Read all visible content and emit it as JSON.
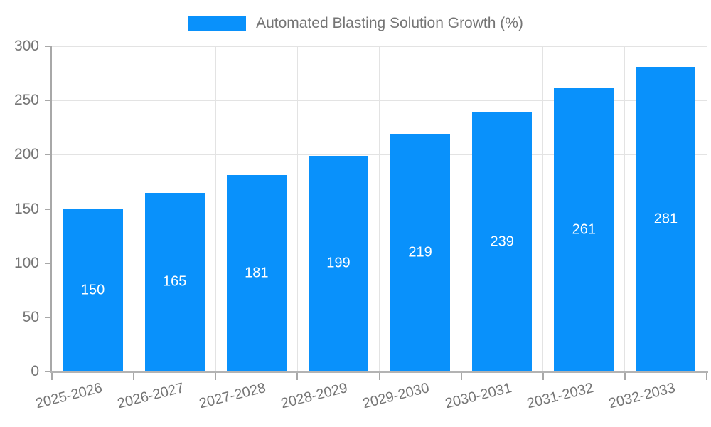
{
  "chart_data": {
    "type": "bar",
    "title": "",
    "legend": {
      "label": "Automated Blasting Solution Growth (%)",
      "position": "top"
    },
    "categories": [
      "2025-2026",
      "2026-2027",
      "2027-2028",
      "2028-2029",
      "2029-2030",
      "2030-2031",
      "2031-2032",
      "2032-2033"
    ],
    "series": [
      {
        "name": "Automated Blasting Solution Growth (%)",
        "values": [
          150,
          165,
          181,
          199,
          219,
          239,
          261,
          281
        ]
      }
    ],
    "value_labels_shown": true,
    "xlabel": "",
    "ylabel": "",
    "ylim": [
      0,
      300
    ],
    "yticks": [
      0,
      50,
      100,
      150,
      200,
      250,
      300
    ],
    "grid": true,
    "x_label_rotation_deg": -14,
    "colors": {
      "bar": "#0991fb",
      "grid": "#e3e3e3",
      "axis": "#a8a8a8",
      "tick_label": "#757575",
      "value_label": "#ffffff"
    }
  }
}
